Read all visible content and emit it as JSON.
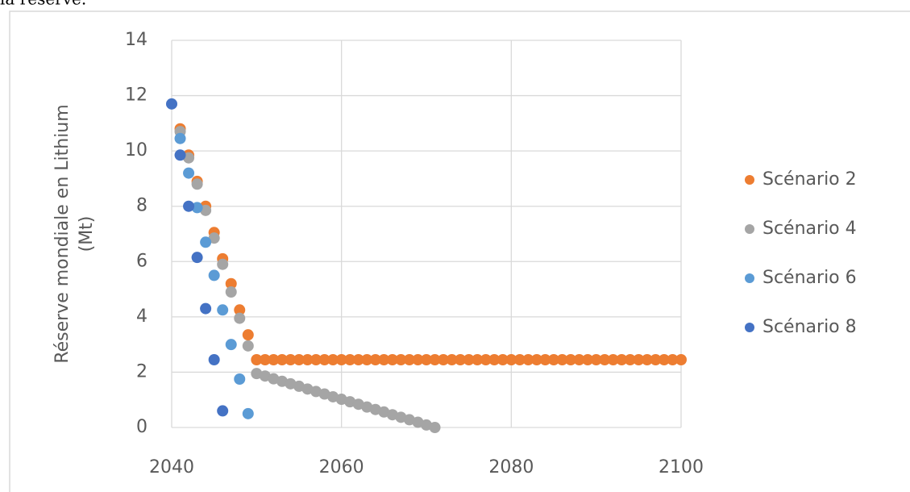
{
  "text_above": "la réserve.",
  "chart_data": {
    "type": "scatter",
    "y_label": [
      "Réserve mondiale en Lithium",
      "(Mt)"
    ],
    "xlim": [
      2040,
      2100
    ],
    "xticks": [
      2040,
      2060,
      2080,
      2100
    ],
    "ylim": [
      0,
      14
    ],
    "yticks": [
      0,
      2,
      4,
      6,
      8,
      10,
      12,
      14
    ],
    "grid": true,
    "legend": "right",
    "series": [
      {
        "name": "Scénario 2",
        "color": "#ed7d31",
        "x": [
          2041,
          2042,
          2043,
          2044,
          2045,
          2046,
          2047,
          2048,
          2049,
          2050,
          2051,
          2052,
          2053,
          2054,
          2055,
          2056,
          2057,
          2058,
          2059,
          2060,
          2061,
          2062,
          2063,
          2064,
          2065,
          2066,
          2067,
          2068,
          2069,
          2070,
          2071,
          2072,
          2073,
          2074,
          2075,
          2076,
          2077,
          2078,
          2079,
          2080,
          2081,
          2082,
          2083,
          2084,
          2085,
          2086,
          2087,
          2088,
          2089,
          2090,
          2091,
          2092,
          2093,
          2094,
          2095,
          2096,
          2097,
          2098,
          2099,
          2100
        ],
        "values": [
          10.8,
          9.85,
          8.9,
          8.0,
          7.05,
          6.1,
          5.2,
          4.25,
          3.35,
          2.45,
          2.45,
          2.45,
          2.45,
          2.45,
          2.45,
          2.45,
          2.45,
          2.45,
          2.45,
          2.45,
          2.45,
          2.45,
          2.45,
          2.45,
          2.45,
          2.45,
          2.45,
          2.45,
          2.45,
          2.45,
          2.45,
          2.45,
          2.45,
          2.45,
          2.45,
          2.45,
          2.45,
          2.45,
          2.45,
          2.45,
          2.45,
          2.45,
          2.45,
          2.45,
          2.45,
          2.45,
          2.45,
          2.45,
          2.45,
          2.45,
          2.45,
          2.45,
          2.45,
          2.45,
          2.45,
          2.45,
          2.45,
          2.45,
          2.45,
          2.45
        ]
      },
      {
        "name": "Scénario 4",
        "color": "#a5a5a5",
        "x": [
          2041,
          2042,
          2043,
          2044,
          2045,
          2046,
          2047,
          2048,
          2049,
          2050,
          2051,
          2052,
          2053,
          2054,
          2055,
          2056,
          2057,
          2058,
          2059,
          2060,
          2061,
          2062,
          2063,
          2064,
          2065,
          2066,
          2067,
          2068,
          2069,
          2070,
          2071
        ],
        "values": [
          10.7,
          9.75,
          8.8,
          7.85,
          6.85,
          5.9,
          4.9,
          3.95,
          2.95,
          1.95,
          1.86,
          1.76,
          1.67,
          1.58,
          1.49,
          1.39,
          1.3,
          1.21,
          1.11,
          1.02,
          0.93,
          0.84,
          0.74,
          0.65,
          0.56,
          0.46,
          0.37,
          0.28,
          0.19,
          0.09,
          0
        ]
      },
      {
        "name": "Scénario 6",
        "color": "#5b9bd5",
        "x": [
          2041,
          2042,
          2043,
          2044,
          2045,
          2046,
          2047,
          2048,
          2049
        ],
        "values": [
          10.45,
          9.2,
          7.95,
          6.7,
          5.5,
          4.25,
          3.0,
          1.75,
          0.5
        ]
      },
      {
        "name": "Scénario 8",
        "color": "#4472c4",
        "x": [
          2040,
          2041,
          2042,
          2043,
          2044,
          2045,
          2046
        ],
        "values": [
          11.7,
          9.85,
          8.0,
          6.15,
          4.3,
          2.45,
          0.6
        ]
      }
    ]
  }
}
